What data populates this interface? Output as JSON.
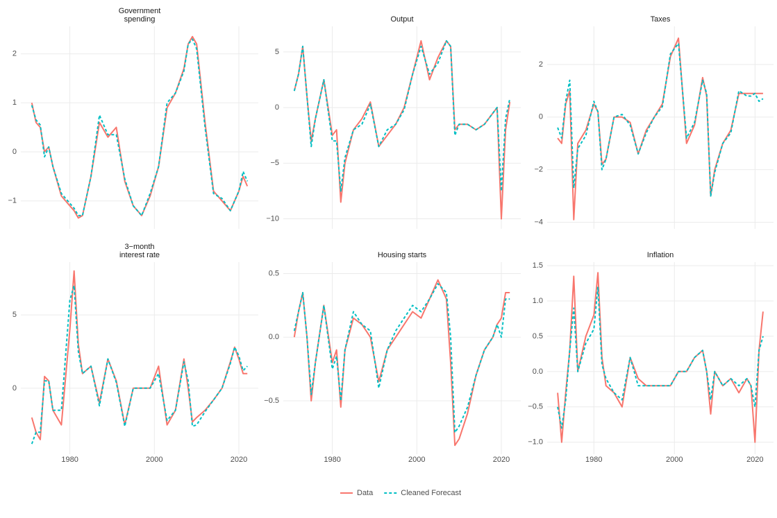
{
  "chart_data": [
    {
      "type": "line",
      "title": "Government\nspending",
      "x": [
        1971,
        1972,
        1973,
        1974,
        1975,
        1976,
        1978,
        1980,
        1981,
        1982,
        1983,
        1985,
        1987,
        1989,
        1991,
        1993,
        1995,
        1997,
        1999,
        2001,
        2003,
        2005,
        2007,
        2008,
        2009,
        2010,
        2012,
        2014,
        2016,
        2018,
        2019,
        2020,
        2021,
        2022
      ],
      "xlim": [
        1968.4,
        2024.6
      ],
      "xticks": [
        1980,
        2000,
        2020
      ],
      "ylim": [
        -1.57,
        2.56
      ],
      "yticks": [
        {
          "value": -1,
          "label": "−1"
        },
        0,
        1,
        2
      ],
      "grid": true,
      "series": [
        {
          "name": "Data",
          "color": "#F8766D",
          "dash": false,
          "values": [
            1.0,
            0.6,
            0.5,
            0.0,
            0.1,
            -0.3,
            -0.9,
            -1.1,
            -1.2,
            -1.35,
            -1.3,
            -0.5,
            0.6,
            0.3,
            0.5,
            -0.6,
            -1.1,
            -1.3,
            -0.9,
            -0.3,
            0.9,
            1.2,
            1.7,
            2.2,
            2.35,
            2.2,
            0.6,
            -0.8,
            -1.0,
            -1.2,
            -1.0,
            -0.8,
            -0.5,
            -0.7
          ]
        },
        {
          "name": "Cleaned Forecast",
          "color": "#00BFC4",
          "dash": true,
          "values": [
            0.95,
            0.65,
            0.55,
            -0.1,
            0.1,
            -0.3,
            -0.85,
            -1.05,
            -1.15,
            -1.3,
            -1.3,
            -0.5,
            0.75,
            0.35,
            0.35,
            -0.55,
            -1.1,
            -1.3,
            -0.85,
            -0.3,
            1.0,
            1.2,
            1.65,
            2.2,
            2.3,
            2.1,
            0.5,
            -0.85,
            -0.95,
            -1.2,
            -1.0,
            -0.8,
            -0.4,
            -0.6
          ]
        }
      ]
    },
    {
      "type": "line",
      "title": "Output",
      "x": [
        1971,
        1972,
        1973,
        1974,
        1975,
        1976,
        1978,
        1980,
        1981,
        1982,
        1983,
        1985,
        1987,
        1989,
        1991,
        1993,
        1995,
        1997,
        1999,
        2001,
        2003,
        2005,
        2007,
        2008,
        2009,
        2010,
        2012,
        2014,
        2016,
        2018,
        2019,
        2020,
        2021,
        2022
      ],
      "xlim": [
        1968.4,
        2024.6
      ],
      "xticks": [
        1980,
        2000,
        2020
      ],
      "ylim": [
        -10.9,
        7.3
      ],
      "yticks": [
        {
          "value": -10,
          "label": "−10"
        },
        {
          "value": -5,
          "label": "−5"
        },
        0,
        5
      ],
      "grid": true,
      "series": [
        {
          "name": "Data",
          "color": "#F8766D",
          "dash": false,
          "values": [
            1.5,
            3,
            5.5,
            1,
            -3,
            -1,
            2.5,
            -2.5,
            -2,
            -8.5,
            -5,
            -2,
            -1,
            0.5,
            -3.5,
            -2.5,
            -1.5,
            0,
            3,
            6,
            2.5,
            4.5,
            6,
            5.5,
            -2,
            -1.5,
            -1.5,
            -2,
            -1.5,
            -0.5,
            0,
            -10,
            -2,
            0.5
          ]
        },
        {
          "name": "Cleaned Forecast",
          "color": "#00BFC4",
          "dash": true,
          "values": [
            1.5,
            3,
            5.5,
            1,
            -3.5,
            -1,
            2.5,
            -3,
            -3,
            -7.5,
            -4.5,
            -2,
            -1.5,
            0.3,
            -3.5,
            -2,
            -1.5,
            -0.2,
            3,
            5.5,
            3,
            4,
            6,
            5.5,
            -2.5,
            -1.5,
            -1.5,
            -2,
            -1.5,
            -0.5,
            0,
            -7.5,
            -1,
            0.8
          ]
        }
      ]
    },
    {
      "type": "line",
      "title": "Taxes",
      "x": [
        1971,
        1972,
        1973,
        1974,
        1975,
        1976,
        1978,
        1980,
        1981,
        1982,
        1983,
        1985,
        1987,
        1989,
        1991,
        1993,
        1995,
        1997,
        1999,
        2001,
        2003,
        2005,
        2007,
        2008,
        2009,
        2010,
        2012,
        2014,
        2016,
        2018,
        2019,
        2020,
        2021,
        2022
      ],
      "xlim": [
        1968.4,
        2024.6
      ],
      "xticks": [
        1980,
        2000,
        2020
      ],
      "ylim": [
        -4.25,
        3.45
      ],
      "yticks": [
        {
          "value": -4,
          "label": "−4"
        },
        {
          "value": -2,
          "label": "−2"
        },
        0,
        2
      ],
      "grid": true,
      "series": [
        {
          "name": "Data",
          "color": "#F8766D",
          "dash": false,
          "values": [
            -0.8,
            -1.0,
            0.5,
            1.0,
            -3.9,
            -1.0,
            -0.5,
            0.5,
            0.2,
            -1.8,
            -1.6,
            0,
            0,
            -0.2,
            -1.4,
            -0.5,
            0,
            0.5,
            2.3,
            3.0,
            -1.0,
            -0.3,
            1.5,
            0.8,
            -3.0,
            -2.0,
            -1.0,
            -0.5,
            0.9,
            0.9,
            0.9,
            0.9,
            0.9,
            0.9
          ]
        },
        {
          "name": "Cleaned Forecast",
          "color": "#00BFC4",
          "dash": true,
          "values": [
            -0.4,
            -0.8,
            0.6,
            1.4,
            -2.7,
            -1.2,
            -0.7,
            0.6,
            0.2,
            -2.0,
            -1.6,
            0,
            0.1,
            -0.3,
            -1.4,
            -0.6,
            0,
            0.4,
            2.4,
            2.8,
            -0.8,
            -0.2,
            1.4,
            0.9,
            -3.0,
            -2.1,
            -1.0,
            -0.6,
            1.0,
            0.8,
            0.8,
            0.9,
            0.6,
            0.7
          ]
        }
      ]
    },
    {
      "type": "line",
      "title": "3−month\ninterest rate",
      "x": [
        1971,
        1972,
        1973,
        1974,
        1975,
        1976,
        1978,
        1980,
        1981,
        1982,
        1983,
        1985,
        1987,
        1989,
        1991,
        1993,
        1995,
        1997,
        1999,
        2001,
        2003,
        2005,
        2007,
        2008,
        2009,
        2010,
        2012,
        2014,
        2016,
        2018,
        2019,
        2020,
        2021,
        2022
      ],
      "xlim": [
        1968.4,
        2024.6
      ],
      "xticks": [
        1980,
        2000,
        2020
      ],
      "ylim": [
        -4.5,
        8.6
      ],
      "yticks": [
        0,
        5
      ],
      "grid": true,
      "series": [
        {
          "name": "Data",
          "color": "#F8766D",
          "dash": false,
          "values": [
            -2,
            -3,
            -3.5,
            0.8,
            0.5,
            -1.5,
            -2.5,
            4,
            8,
            3,
            1,
            1.5,
            -1,
            2,
            0.5,
            -2.5,
            0,
            0,
            0,
            1.5,
            -2.5,
            -1.5,
            2,
            0,
            -2.3,
            -2,
            -1.5,
            -0.8,
            0,
            1.8,
            2.8,
            2,
            1,
            1
          ]
        },
        {
          "name": "Cleaned Forecast",
          "color": "#00BFC4",
          "dash": true,
          "values": [
            -3.8,
            -3,
            -3,
            0.5,
            0.5,
            -1.5,
            -1.5,
            6,
            7,
            2.5,
            1,
            1.5,
            -1.2,
            2,
            0.4,
            -2.6,
            0,
            0,
            0,
            1,
            -2.2,
            -1.5,
            1.8,
            0.5,
            -2.6,
            -2.5,
            -1.6,
            -0.8,
            0,
            1.7,
            2.8,
            2.2,
            1.2,
            1.5
          ]
        }
      ]
    },
    {
      "type": "line",
      "title": "Housing starts",
      "x": [
        1971,
        1972,
        1973,
        1974,
        1975,
        1976,
        1978,
        1980,
        1981,
        1982,
        1983,
        1985,
        1987,
        1989,
        1991,
        1993,
        1995,
        1997,
        1999,
        2001,
        2003,
        2005,
        2007,
        2008,
        2009,
        2010,
        2012,
        2014,
        2016,
        2018,
        2019,
        2020,
        2021,
        2022
      ],
      "xlim": [
        1968.4,
        2024.6
      ],
      "xticks": [
        1980,
        2000,
        2020
      ],
      "ylim": [
        -0.92,
        0.59
      ],
      "yticks": [
        {
          "value": -0.5,
          "label": "−0.5"
        },
        {
          "value": 0,
          "label": "0.0"
        },
        0.5
      ],
      "grid": true,
      "series": [
        {
          "name": "Data",
          "color": "#F8766D",
          "dash": false,
          "values": [
            0.0,
            0.2,
            0.35,
            0.0,
            -0.5,
            -0.2,
            0.25,
            -0.2,
            -0.1,
            -0.55,
            -0.1,
            0.15,
            0.1,
            0.0,
            -0.35,
            -0.1,
            0.0,
            0.1,
            0.2,
            0.15,
            0.3,
            0.45,
            0.3,
            -0.2,
            -0.85,
            -0.8,
            -0.6,
            -0.3,
            -0.1,
            0.0,
            0.1,
            0.15,
            0.35,
            0.35
          ]
        },
        {
          "name": "Cleaned Forecast",
          "color": "#00BFC4",
          "dash": true,
          "values": [
            0.05,
            0.2,
            0.35,
            0.0,
            -0.45,
            -0.2,
            0.25,
            -0.25,
            -0.15,
            -0.5,
            -0.1,
            0.2,
            0.1,
            0.05,
            -0.4,
            -0.1,
            0.05,
            0.15,
            0.25,
            0.2,
            0.3,
            0.42,
            0.35,
            0.0,
            -0.75,
            -0.7,
            -0.55,
            -0.3,
            -0.1,
            0.0,
            0.1,
            0.0,
            0.3,
            0.3
          ]
        }
      ]
    },
    {
      "type": "line",
      "title": "Inflation",
      "x": [
        1971,
        1972,
        1973,
        1974,
        1975,
        1976,
        1978,
        1980,
        1981,
        1982,
        1983,
        1985,
        1987,
        1989,
        1991,
        1993,
        1995,
        1997,
        1999,
        2001,
        2003,
        2005,
        2007,
        2008,
        2009,
        2010,
        2012,
        2014,
        2016,
        2018,
        2019,
        2020,
        2021,
        2022
      ],
      "xlim": [
        1968.4,
        2024.6
      ],
      "xticks": [
        1980,
        2000,
        2020
      ],
      "ylim": [
        -1.17,
        1.55
      ],
      "yticks": [
        {
          "value": -1,
          "label": "−1.0"
        },
        {
          "value": -0.5,
          "label": "−0.5"
        },
        {
          "value": 0,
          "label": "0.0"
        },
        0.5,
        {
          "value": 1,
          "label": "1.0"
        },
        1.5
      ],
      "grid": true,
      "series": [
        {
          "name": "Data",
          "color": "#F8766D",
          "dash": false,
          "values": [
            -0.3,
            -1.0,
            -0.3,
            0.3,
            1.35,
            0.0,
            0.5,
            0.8,
            1.4,
            0.2,
            -0.2,
            -0.3,
            -0.5,
            0.2,
            -0.1,
            -0.2,
            -0.2,
            -0.2,
            -0.2,
            0.0,
            0.0,
            0.2,
            0.3,
            0.0,
            -0.6,
            0.0,
            -0.2,
            -0.1,
            -0.3,
            -0.1,
            -0.2,
            -1.0,
            0.3,
            0.85
          ]
        },
        {
          "name": "Cleaned Forecast",
          "color": "#00BFC4",
          "dash": true,
          "values": [
            -0.5,
            -0.8,
            -0.4,
            0.3,
            0.9,
            0.0,
            0.4,
            0.6,
            1.2,
            0.1,
            -0.1,
            -0.3,
            -0.4,
            0.2,
            -0.2,
            -0.2,
            -0.2,
            -0.2,
            -0.2,
            0.0,
            0.0,
            0.2,
            0.3,
            0.0,
            -0.4,
            0.0,
            -0.2,
            -0.1,
            -0.2,
            -0.1,
            -0.2,
            -0.5,
            0.3,
            0.5
          ]
        }
      ]
    }
  ]
}
